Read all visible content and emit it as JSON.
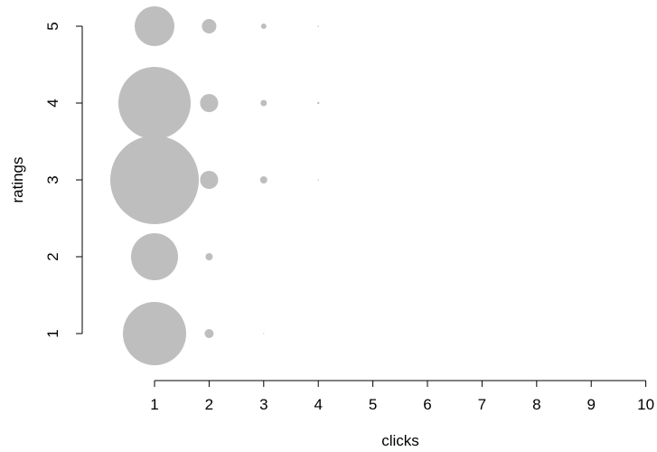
{
  "chart_data": {
    "type": "scatter",
    "xlabel": "clicks",
    "ylabel": "ratings",
    "xlim": [
      1,
      10
    ],
    "ylim": [
      1,
      5
    ],
    "x_ticks": [
      "1",
      "2",
      "3",
      "4",
      "5",
      "6",
      "7",
      "8",
      "9",
      "10"
    ],
    "y_ticks": [
      "1",
      "2",
      "3",
      "4",
      "5"
    ],
    "grid": false,
    "point_color": "#bebebe",
    "points": [
      {
        "x": 1,
        "y": 1,
        "size": 35
      },
      {
        "x": 1,
        "y": 2,
        "size": 26
      },
      {
        "x": 1,
        "y": 3,
        "size": 49
      },
      {
        "x": 1,
        "y": 4,
        "size": 40
      },
      {
        "x": 1,
        "y": 5,
        "size": 22
      },
      {
        "x": 2,
        "y": 1,
        "size": 5
      },
      {
        "x": 2,
        "y": 2,
        "size": 4
      },
      {
        "x": 2,
        "y": 3,
        "size": 10
      },
      {
        "x": 2,
        "y": 4,
        "size": 10
      },
      {
        "x": 2,
        "y": 5,
        "size": 8
      },
      {
        "x": 3,
        "y": 1,
        "size": 0.6
      },
      {
        "x": 3,
        "y": 3,
        "size": 4
      },
      {
        "x": 3,
        "y": 4,
        "size": 3.5
      },
      {
        "x": 3,
        "y": 5,
        "size": 3
      },
      {
        "x": 4,
        "y": 3,
        "size": 0.7
      },
      {
        "x": 4,
        "y": 4,
        "size": 1.2
      },
      {
        "x": 4,
        "y": 5,
        "size": 0.8
      }
    ]
  }
}
